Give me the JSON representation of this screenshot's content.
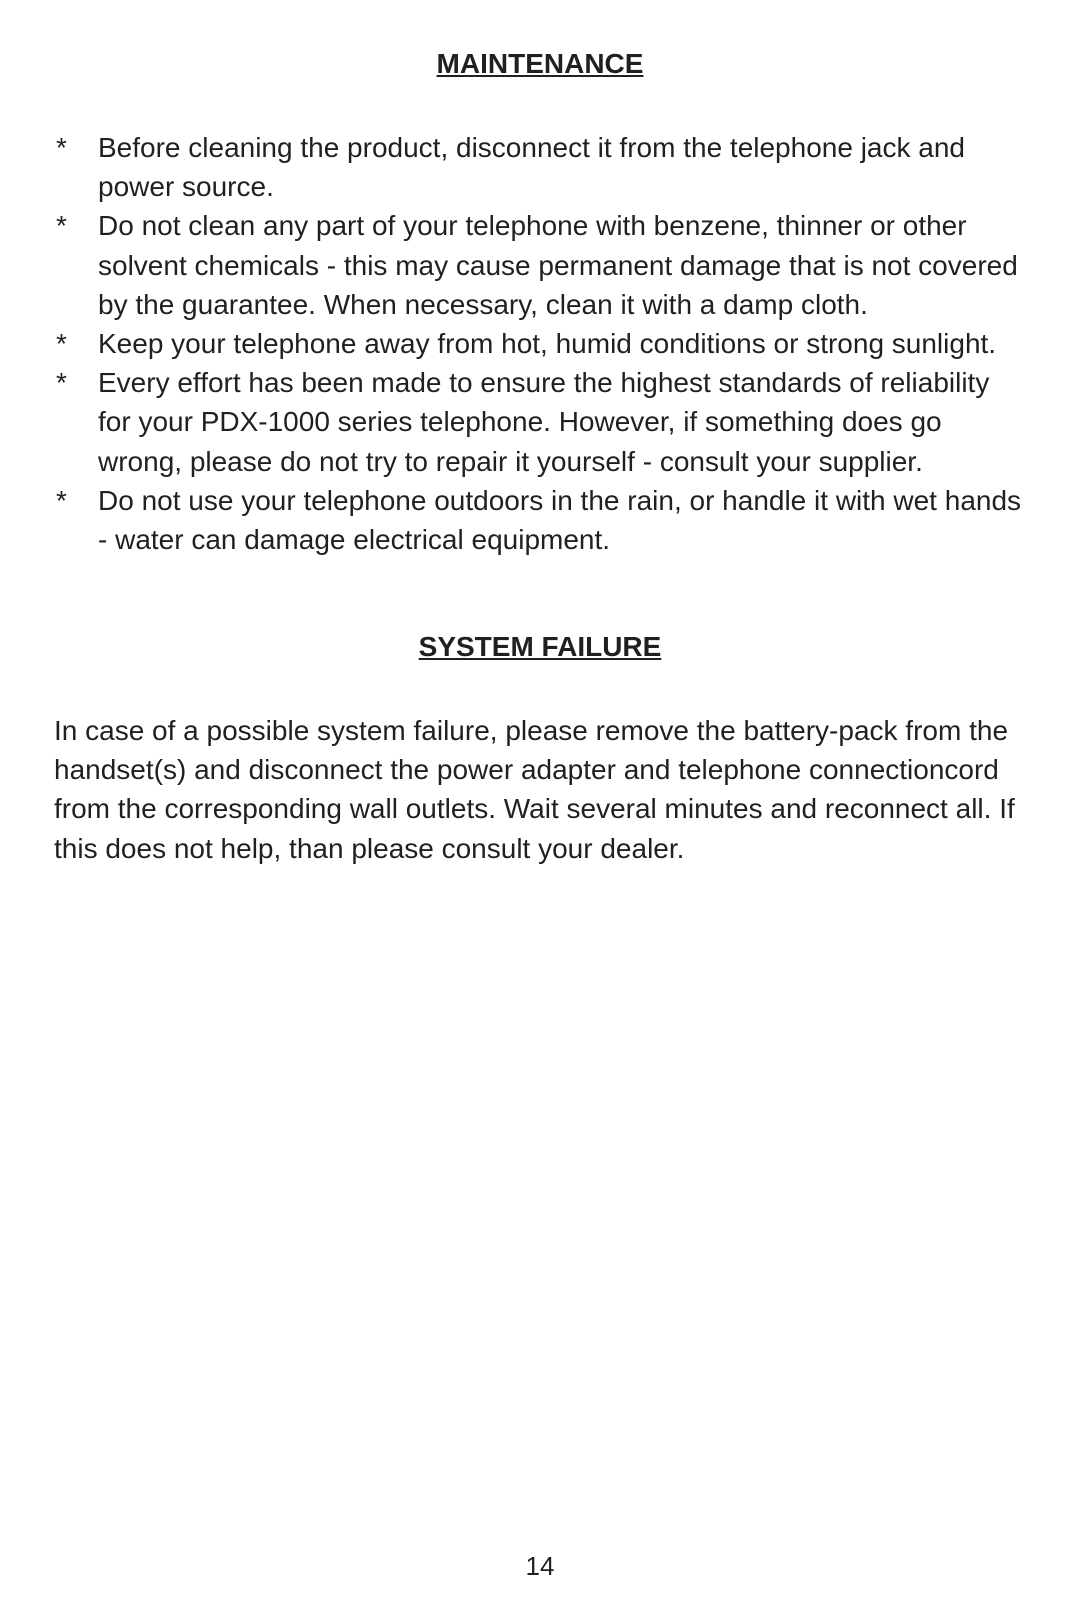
{
  "headings": {
    "maintenance": "MAINTENANCE",
    "system_failure": "SYSTEM FAILURE"
  },
  "maintenance_items": [
    "Before cleaning the product, disconnect it from the telephone jack and power source.",
    "Do not clean any part of your telephone with benzene, thinner or other solvent chemicals - this may cause permanent damage that is not covered by the guarantee. When necessary, clean it with a damp cloth.",
    "Keep your telephone away from hot, humid conditions or strong sunlight.",
    "Every effort has been made to ensure the highest standards of reliability for your PDX-1000 series telephone. However, if something does go wrong, please do not try to repair it yourself - consult your supplier.",
    "Do not use your telephone outdoors in the rain, or handle it with wet hands - water can damage electrical equipment."
  ],
  "system_failure_text": "In case of a possible system failure, please remove the battery-pack from the handset(s) and disconnect the power adapter and telephone connectioncord from the corresponding wall outlets. Wait several minutes and reconnect all. If this does not help, than please consult your dealer.",
  "bullet_marker": "*",
  "page_number": "14",
  "styles": {
    "background_color": "#ffffff",
    "text_color": "#231f20",
    "heading_fontsize": 28,
    "body_fontsize": 28,
    "page_number_fontsize": 26,
    "line_height": 1.4,
    "font_family": "Arial, Helvetica, sans-serif"
  }
}
